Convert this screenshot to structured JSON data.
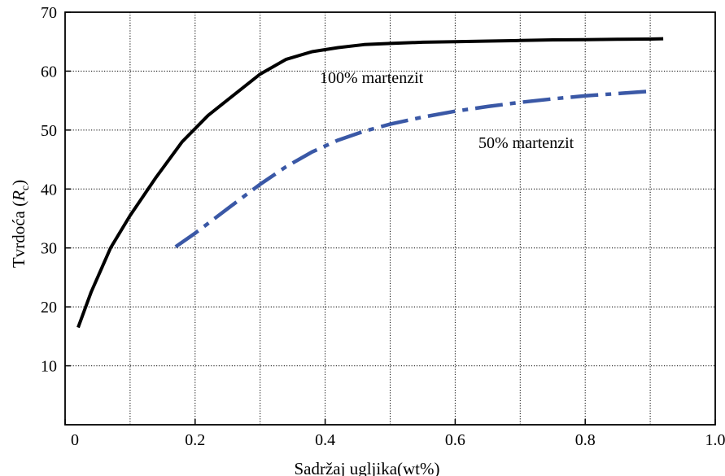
{
  "chart_data": {
    "type": "line",
    "title": "",
    "xlabel": "Sadržaj ugljika(wt%)",
    "ylabel_main": "Tvrdoća (",
    "ylabel_italic": "R",
    "ylabel_sub": "c",
    "ylabel_close": ")",
    "xlim": [
      0.0,
      1.0
    ],
    "ylim": [
      0,
      70
    ],
    "x_ticks": [
      0,
      0.2,
      0.4,
      0.6,
      0.8,
      1.0
    ],
    "x_tick_labels": [
      "0",
      "0.2",
      "0.4",
      "0.6",
      "0.8",
      "1.0"
    ],
    "x_grid": [
      0.1,
      0.2,
      0.3,
      0.4,
      0.5,
      0.6,
      0.7,
      0.8,
      0.9
    ],
    "y_ticks": [
      10,
      20,
      30,
      40,
      50,
      60,
      70
    ],
    "y_tick_labels": [
      "10",
      "20",
      "30",
      "40",
      "50",
      "60",
      "70"
    ],
    "y_grid": [
      10,
      20,
      30,
      40,
      50,
      60
    ],
    "grid": true,
    "series": [
      {
        "name": "100% martenzit",
        "color": "#000000",
        "style": "solid",
        "x": [
          0.02,
          0.04,
          0.07,
          0.1,
          0.14,
          0.18,
          0.22,
          0.26,
          0.3,
          0.34,
          0.38,
          0.42,
          0.46,
          0.5,
          0.55,
          0.6,
          0.65,
          0.7,
          0.75,
          0.8,
          0.85,
          0.9,
          0.92
        ],
        "y": [
          16.5,
          22.5,
          30.0,
          35.5,
          42.0,
          48.0,
          52.5,
          56.0,
          59.5,
          62.0,
          63.3,
          64.0,
          64.5,
          64.7,
          64.9,
          65.0,
          65.1,
          65.2,
          65.3,
          65.35,
          65.4,
          65.45,
          65.5
        ]
      },
      {
        "name": "50% martenzit",
        "color": "#3a58a6",
        "style": "dashdot",
        "x": [
          0.17,
          0.2,
          0.23,
          0.26,
          0.3,
          0.34,
          0.38,
          0.42,
          0.46,
          0.5,
          0.55,
          0.6,
          0.65,
          0.7,
          0.75,
          0.8,
          0.85,
          0.9
        ],
        "y": [
          30.2,
          32.5,
          35.0,
          37.5,
          40.8,
          43.8,
          46.3,
          48.3,
          49.8,
          51.0,
          52.2,
          53.2,
          54.0,
          54.7,
          55.3,
          55.8,
          56.2,
          56.6
        ]
      }
    ]
  }
}
